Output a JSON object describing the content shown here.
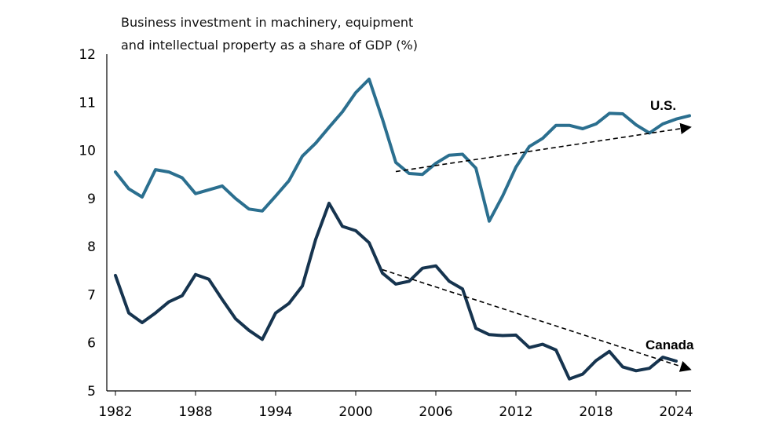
{
  "chart_data": {
    "type": "line",
    "ylabel": [
      "Business investment in machinery, equipment",
      "and intellectual property as a share of GDP (%)"
    ],
    "xlabel": "",
    "xlim": [
      1982,
      2025
    ],
    "ylim": [
      5,
      12
    ],
    "yticks": [
      5,
      6,
      7,
      8,
      9,
      10,
      11,
      12
    ],
    "xticks": [
      1982,
      1988,
      1994,
      2000,
      2006,
      2012,
      2018,
      2024
    ],
    "grid": false,
    "series": [
      {
        "name": "U.S.",
        "color": "#2b6f8f",
        "x": [
          1982,
          1983,
          1984,
          1985,
          1986,
          1987,
          1988,
          1989,
          1990,
          1991,
          1992,
          1993,
          1994,
          1995,
          1996,
          1997,
          1998,
          1999,
          2000,
          2001,
          2002,
          2003,
          2004,
          2005,
          2006,
          2007,
          2008,
          2009,
          2010,
          2011,
          2012,
          2013,
          2014,
          2015,
          2016,
          2017,
          2018,
          2019,
          2020,
          2021,
          2022,
          2023,
          2024,
          2025
        ],
        "values": [
          9.55,
          9.2,
          9.03,
          9.6,
          9.55,
          9.43,
          9.1,
          9.18,
          9.26,
          9.0,
          8.78,
          8.74,
          9.05,
          9.37,
          9.88,
          10.15,
          10.48,
          10.8,
          11.2,
          11.48,
          10.65,
          9.75,
          9.52,
          9.5,
          9.73,
          9.9,
          9.92,
          9.63,
          8.53,
          9.05,
          9.65,
          10.08,
          10.25,
          10.52,
          10.52,
          10.45,
          10.55,
          10.77,
          10.76,
          10.53,
          10.36,
          10.55,
          10.65,
          10.72
        ]
      },
      {
        "name": "Canada",
        "color": "#16344f",
        "x": [
          1982,
          1983,
          1984,
          1985,
          1986,
          1987,
          1988,
          1989,
          1990,
          1991,
          1992,
          1993,
          1994,
          1995,
          1996,
          1997,
          1998,
          1999,
          2000,
          2001,
          2002,
          2003,
          2004,
          2005,
          2006,
          2007,
          2008,
          2009,
          2010,
          2011,
          2012,
          2013,
          2014,
          2015,
          2016,
          2017,
          2018,
          2019,
          2020,
          2021,
          2022,
          2023,
          2024
        ],
        "values": [
          7.4,
          6.62,
          6.42,
          6.62,
          6.85,
          6.98,
          7.42,
          7.32,
          6.9,
          6.5,
          6.26,
          6.07,
          6.62,
          6.82,
          7.18,
          8.15,
          8.9,
          8.42,
          8.33,
          8.08,
          7.45,
          7.22,
          7.28,
          7.55,
          7.6,
          7.28,
          7.12,
          6.3,
          6.17,
          6.15,
          6.16,
          5.9,
          5.97,
          5.85,
          5.25,
          5.35,
          5.63,
          5.82,
          5.5,
          5.42,
          5.47,
          5.7,
          5.62
        ]
      }
    ],
    "trendlines": [
      {
        "series": "U.S.",
        "style": "dashed",
        "arrow": true,
        "x": [
          2003,
          2025
        ],
        "values": [
          9.56,
          10.48
        ]
      },
      {
        "series": "Canada",
        "style": "dashed",
        "arrow": true,
        "x": [
          2002,
          2025
        ],
        "values": [
          7.52,
          5.45
        ]
      }
    ],
    "annotations": [
      {
        "text": "U.S.",
        "series": "U.S."
      },
      {
        "text": "Canada",
        "series": "Canada"
      }
    ]
  }
}
